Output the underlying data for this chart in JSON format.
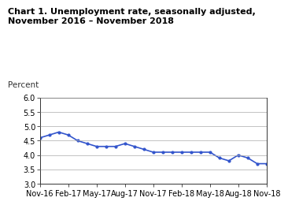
{
  "title_line1": "Chart 1. Unemployment rate, seasonally adjusted,",
  "title_line2": "November 2016 – November 2018",
  "ylabel_above": "Percent",
  "ylim": [
    3.0,
    6.0
  ],
  "yticks": [
    3.0,
    3.5,
    4.0,
    4.5,
    5.0,
    5.5,
    6.0
  ],
  "xtick_labels": [
    "Nov-16",
    "Feb-17",
    "May-17",
    "Aug-17",
    "Nov-17",
    "Feb-18",
    "May-18",
    "Aug-18",
    "Nov-18"
  ],
  "line_color": "#3355cc",
  "line_width": 1.2,
  "marker": "o",
  "marker_size": 2.0,
  "values": [
    4.6,
    4.7,
    4.8,
    4.7,
    4.5,
    4.4,
    4.3,
    4.3,
    4.3,
    4.4,
    4.3,
    4.2,
    4.1,
    4.1,
    4.1,
    4.1,
    4.1,
    4.1,
    4.1,
    3.9,
    3.8,
    4.0,
    3.9,
    3.7,
    3.7
  ],
  "background_color": "#ffffff",
  "grid_color": "#aaaaaa",
  "title_fontsize": 8.0,
  "label_fontsize": 7.5,
  "tick_fontsize": 7.0
}
